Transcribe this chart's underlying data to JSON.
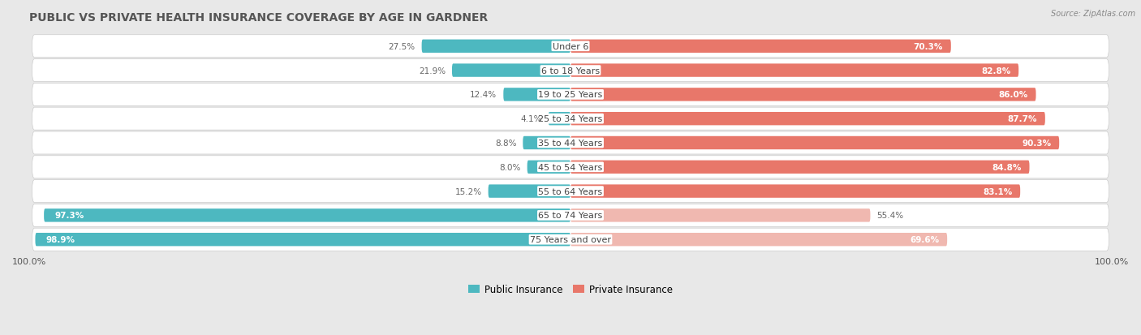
{
  "title": "PUBLIC VS PRIVATE HEALTH INSURANCE COVERAGE BY AGE IN GARDNER",
  "source": "Source: ZipAtlas.com",
  "categories": [
    "Under 6",
    "6 to 18 Years",
    "19 to 25 Years",
    "25 to 34 Years",
    "35 to 44 Years",
    "45 to 54 Years",
    "55 to 64 Years",
    "65 to 74 Years",
    "75 Years and over"
  ],
  "public_values": [
    27.5,
    21.9,
    12.4,
    4.1,
    8.8,
    8.0,
    15.2,
    97.3,
    98.9
  ],
  "private_values": [
    70.3,
    82.8,
    86.0,
    87.7,
    90.3,
    84.8,
    83.1,
    55.4,
    69.6
  ],
  "public_color": "#4db8c0",
  "private_color": "#e8776a",
  "private_color_light": "#f0b8b0",
  "bg_color": "#e8e8e8",
  "row_bg_color": "#ffffff",
  "title_color": "#555555",
  "source_color": "#888888",
  "label_color": "#444444",
  "value_color_inside": "#ffffff",
  "value_color_outside": "#666666",
  "title_fontsize": 10,
  "label_fontsize": 8,
  "value_fontsize": 7.5,
  "legend_fontsize": 8.5,
  "axis_label_fontsize": 8,
  "bar_height": 0.55,
  "row_padding": 0.08,
  "xlim": 100
}
